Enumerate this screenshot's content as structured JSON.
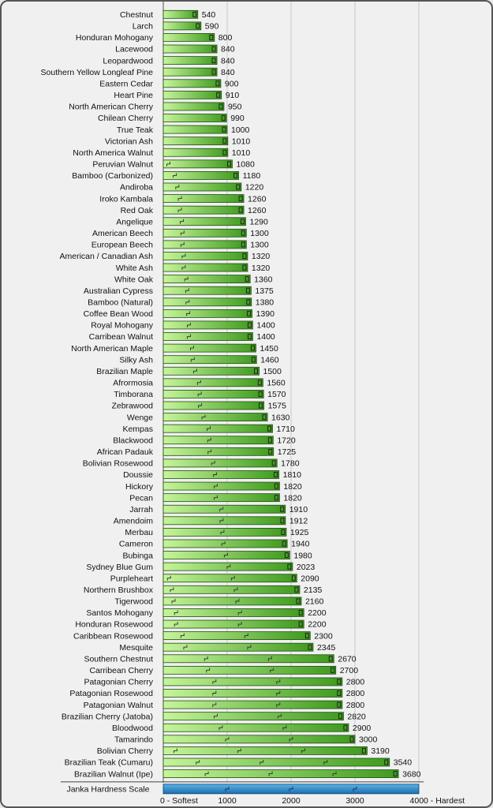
{
  "chart_data": {
    "type": "bar",
    "orientation": "horizontal",
    "xlim": [
      0,
      4000
    ],
    "grid": true,
    "axis_title": "Janka Hardness Scale",
    "ticks": [
      {
        "value": 0,
        "label": "0 - Softest"
      },
      {
        "value": 1000,
        "label": "1000"
      },
      {
        "value": 2000,
        "label": "2000"
      },
      {
        "value": 3000,
        "label": "3000"
      },
      {
        "value": 4000,
        "label": "4000 - Hardest"
      }
    ],
    "categories": [
      "Chestnut",
      "Larch",
      "Honduran Mohogany",
      "Lacewood",
      "Leopardwood",
      "Southern Yellow Longleaf Pine",
      "Eastern Cedar",
      "Heart Pine",
      "North American Cherry",
      "Chilean Cherry",
      "True Teak",
      "Victorian Ash",
      "North America Walnut",
      "Peruvian Walnut",
      "Bamboo (Carbonized)",
      "Andiroba",
      "Iroko Kambala",
      "Red Oak",
      "Angelique",
      "American Beech",
      "European Beech",
      "American / Canadian Ash",
      "White Ash",
      "White Oak",
      "Australian Cypress",
      "Bamboo (Natural)",
      "Coffee Bean Wood",
      "Royal Mohogany",
      "Carribean Walnut",
      "North American Maple",
      "Silky Ash",
      "Brazilian Maple",
      "Afrormosia",
      "Timborana",
      "Zebrawood",
      "Wenge",
      "Kempas",
      "Blackwood",
      "African Padauk",
      "Bolivian Rosewood",
      "Doussie",
      "Hickory",
      "Pecan",
      "Jarrah",
      "Amendoim",
      "Merbau",
      "Cameron",
      "Bubinga",
      "Sydney Blue Gum",
      "Purpleheart",
      "Northern Brushbox",
      "Tigerwood",
      "Santos Mohogany",
      "Honduran Rosewood",
      "Caribbean Rosewood",
      "Mesquite",
      "Southern Chestnut",
      "Carribean Cherry",
      "Patagonian Cherry",
      "Patagonian Rosewood",
      "Patagonian Walnut",
      "Brazilian Cherry (Jatoba)",
      "Bloodwood",
      "Tamarindo",
      "Bolivian Cherry",
      "Brazilian Teak (Cumaru)",
      "Brazilian Walnut (Ipe)"
    ],
    "values": [
      540,
      590,
      800,
      840,
      840,
      840,
      900,
      910,
      950,
      990,
      1000,
      1010,
      1010,
      1080,
      1180,
      1220,
      1260,
      1260,
      1290,
      1300,
      1300,
      1320,
      1320,
      1360,
      1375,
      1380,
      1390,
      1400,
      1400,
      1450,
      1460,
      1500,
      1560,
      1570,
      1575,
      1630,
      1710,
      1720,
      1725,
      1780,
      1810,
      1820,
      1820,
      1910,
      1912,
      1925,
      1940,
      1980,
      2023,
      2090,
      2135,
      2160,
      2200,
      2200,
      2300,
      2345,
      2670,
      2700,
      2800,
      2800,
      2800,
      2820,
      2900,
      3000,
      3190,
      3540,
      3680
    ],
    "colors": {
      "bar_light": "#c6f59a",
      "bar_dark": "#3e9a1e",
      "bar_border": "#1e4d10",
      "scale_light": "#5ab2e8",
      "scale_dark": "#1f6fae",
      "grid": "#c8c8c8"
    }
  }
}
